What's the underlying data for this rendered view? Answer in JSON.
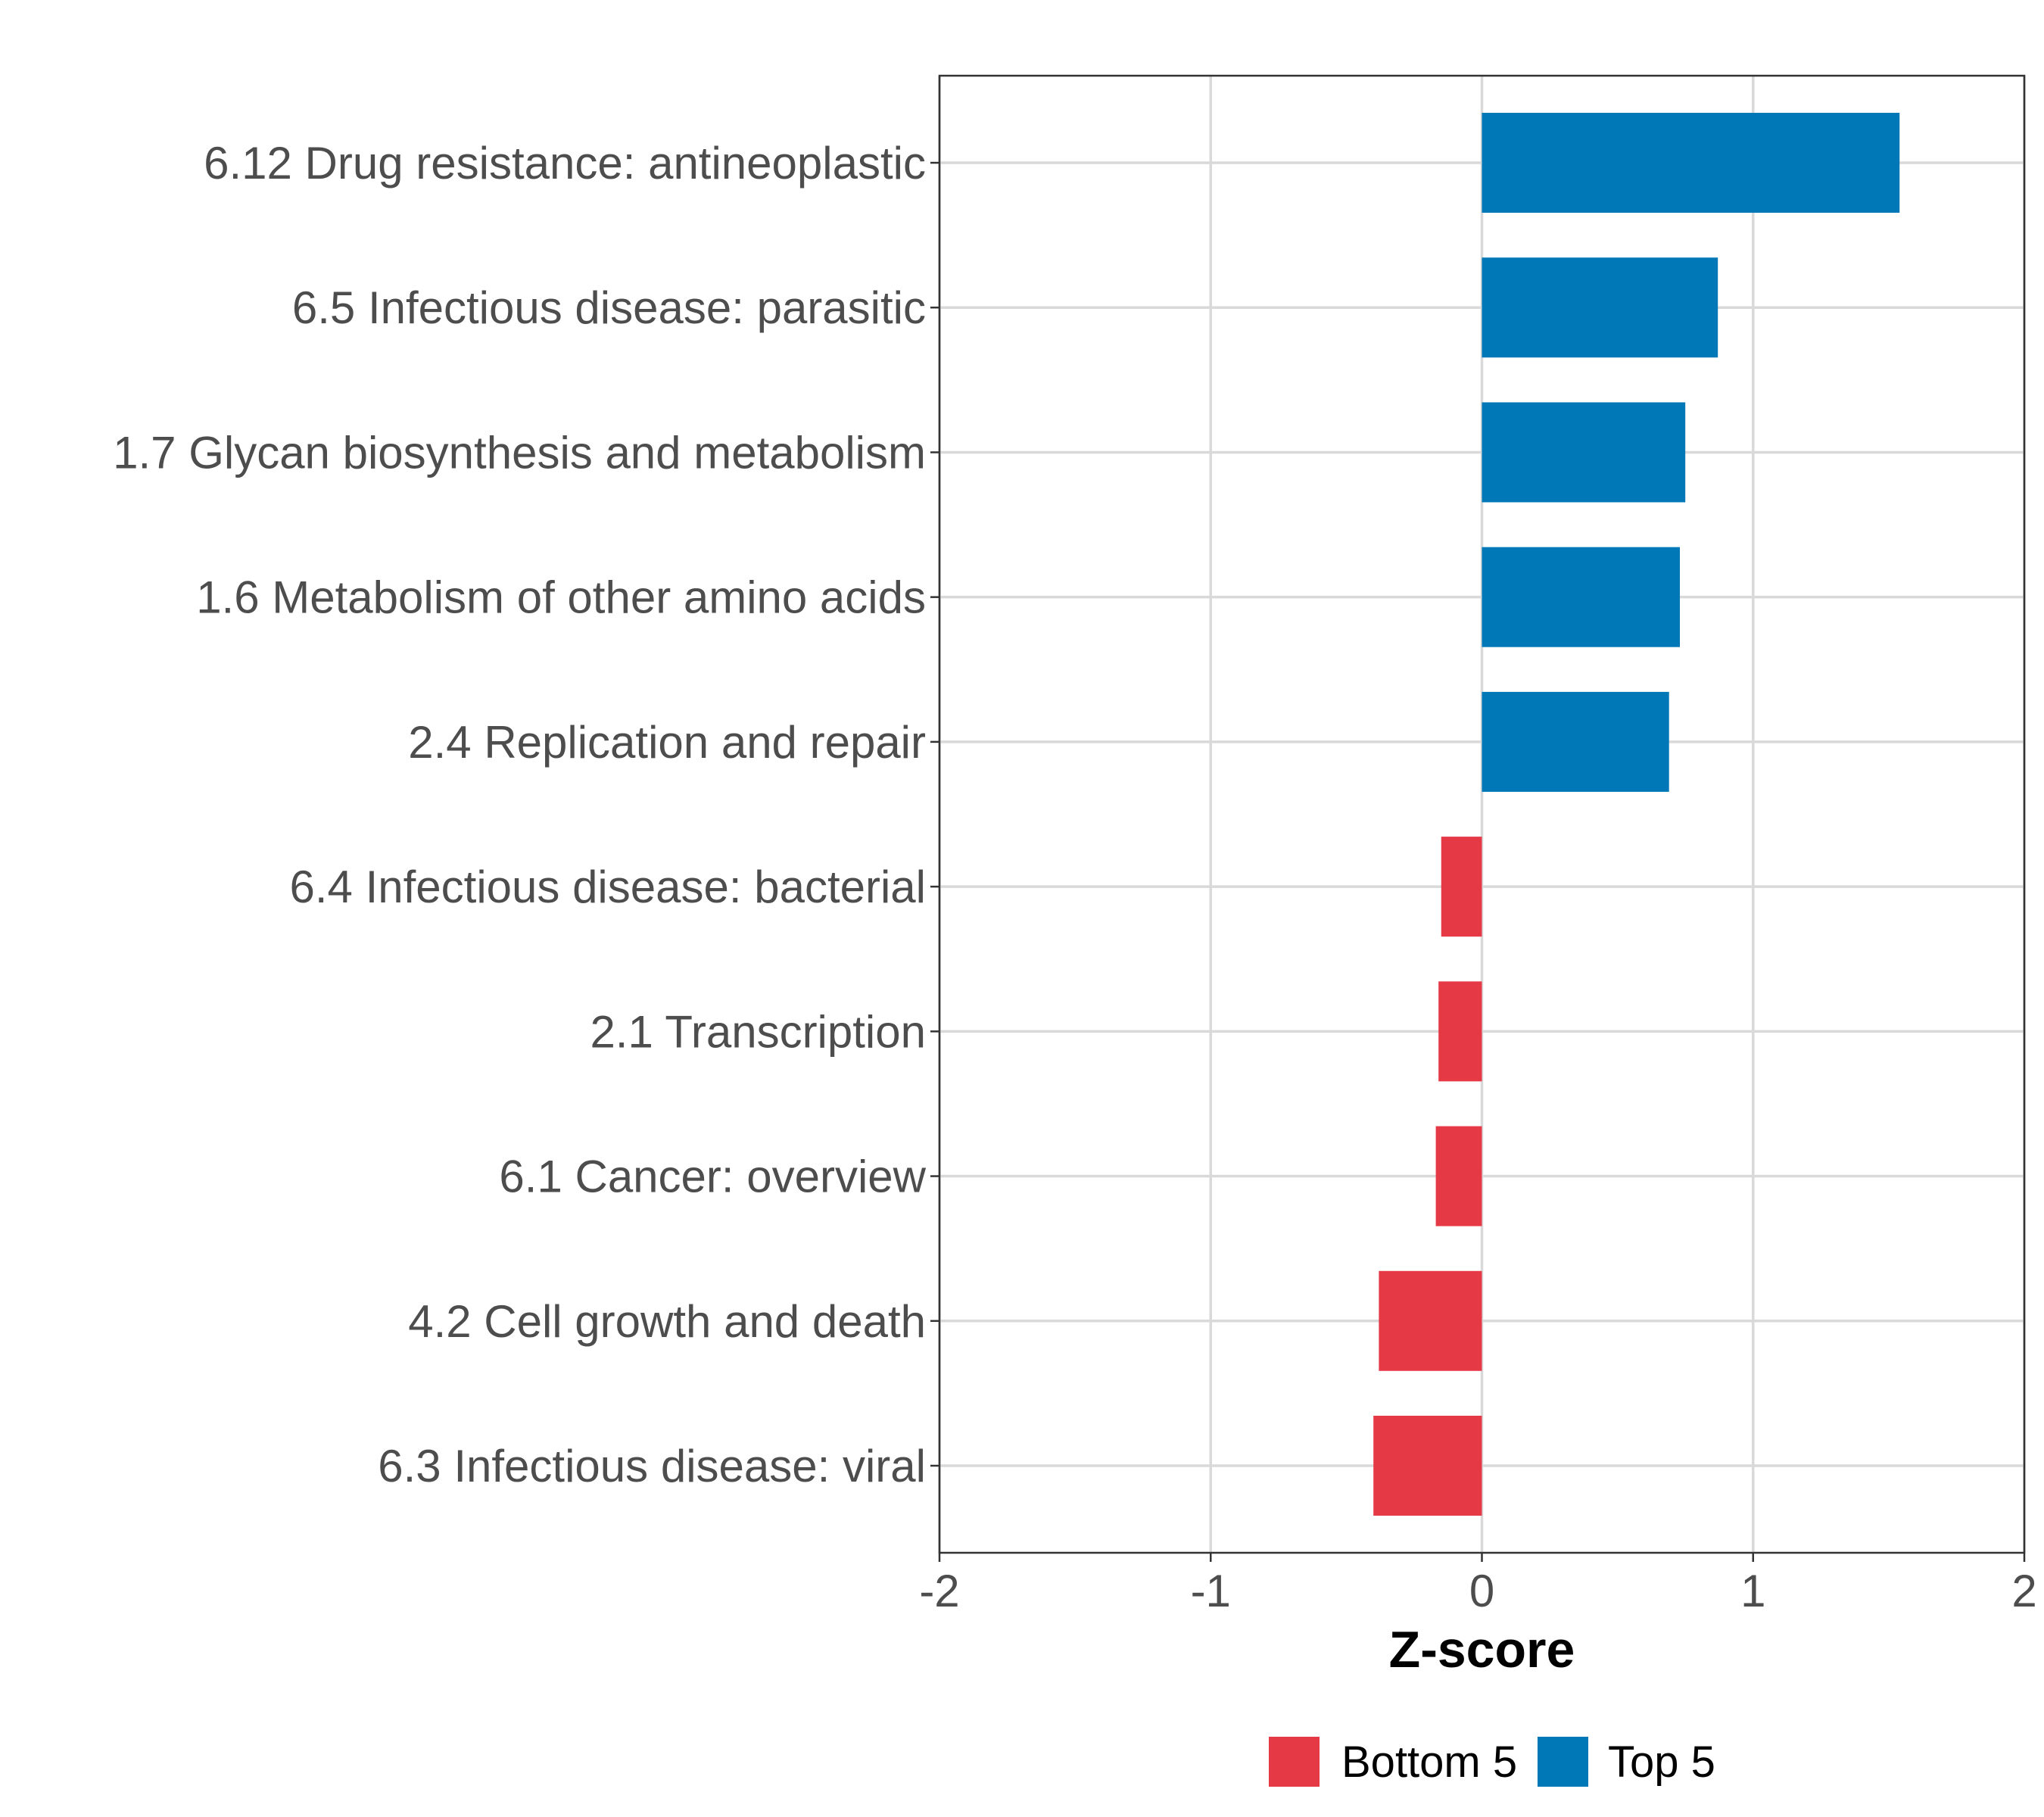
{
  "chart_data": {
    "type": "bar",
    "orientation": "horizontal",
    "title": "",
    "xlabel": "Z-score",
    "ylabel": "",
    "xlim": [
      -2,
      2
    ],
    "xticks": [
      "-2",
      "-1",
      "0",
      "1",
      "2"
    ],
    "grid": true,
    "categories": [
      "6.12 Drug resistance: antineoplastic",
      "6.5 Infectious disease: parasitic",
      "1.7 Glycan biosynthesis and metabolism",
      "1.6 Metabolism of other amino acids",
      "2.4 Replication and repair",
      "6.4 Infectious disease: bacterial",
      "2.1 Transcription",
      "6.1 Cancer: overview",
      "4.2 Cell growth and death",
      "6.3 Infectious disease: viral"
    ],
    "values": [
      1.54,
      0.87,
      0.75,
      0.73,
      0.69,
      -0.15,
      -0.16,
      -0.17,
      -0.38,
      -0.4
    ],
    "groups": [
      "Top 5",
      "Top 5",
      "Top 5",
      "Top 5",
      "Top 5",
      "Bottom 5",
      "Bottom 5",
      "Bottom 5",
      "Bottom 5",
      "Bottom 5"
    ],
    "legend": {
      "position": "bottom",
      "entries": [
        {
          "name": "Bottom 5",
          "color": "#e63946"
        },
        {
          "name": "Top 5",
          "color": "#0077b6"
        }
      ]
    }
  }
}
